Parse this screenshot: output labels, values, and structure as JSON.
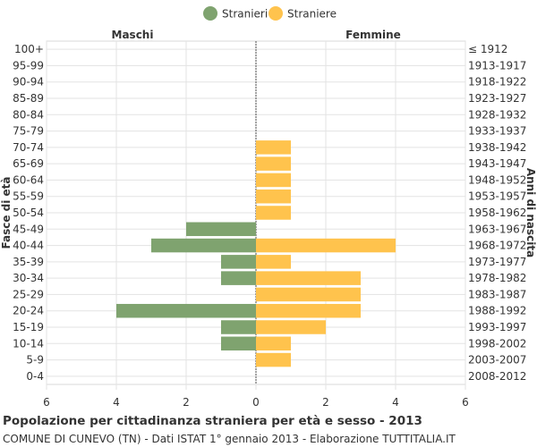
{
  "chart_data": {
    "type": "bar",
    "orientation": "horizontal",
    "title": "Popolazione per cittadinanza straniera per età e sesso - 2013",
    "subtitle": "COMUNE DI CUNEVO (TN) - Dati ISTAT 1° gennaio 2013 - Elaborazione TUTTITALIA.IT",
    "left_header": "Maschi",
    "right_header": "Femmine",
    "ylabel_left": "Fasce di età",
    "ylabel_right": "Anni di nascita",
    "xlim": [
      -6,
      6
    ],
    "xticks": [
      -6,
      -4,
      -2,
      0,
      2,
      4,
      6
    ],
    "xtick_labels": [
      "6",
      "4",
      "2",
      "0",
      "2",
      "4",
      "6"
    ],
    "legend_position": "top-center",
    "categories": [
      "100+",
      "95-99",
      "90-94",
      "85-89",
      "80-84",
      "75-79",
      "70-74",
      "65-69",
      "60-64",
      "55-59",
      "50-54",
      "45-49",
      "40-44",
      "35-39",
      "30-34",
      "25-29",
      "20-24",
      "15-19",
      "10-14",
      "5-9",
      "0-4"
    ],
    "birth_years": [
      "≤ 1912",
      "1913-1917",
      "1918-1922",
      "1923-1927",
      "1928-1932",
      "1933-1937",
      "1938-1942",
      "1943-1947",
      "1948-1952",
      "1953-1957",
      "1958-1962",
      "1963-1967",
      "1968-1972",
      "1973-1977",
      "1978-1982",
      "1983-1987",
      "1988-1992",
      "1993-1997",
      "1998-2002",
      "2003-2007",
      "2008-2012"
    ],
    "series": [
      {
        "name": "Stranieri",
        "color": "#7fa36f",
        "side": "left",
        "values": [
          0,
          0,
          0,
          0,
          0,
          0,
          0,
          0,
          0,
          0,
          0,
          2,
          3,
          1,
          1,
          0,
          4,
          1,
          1,
          0,
          0
        ]
      },
      {
        "name": "Straniere",
        "color": "#ffc34d",
        "side": "right",
        "values": [
          0,
          0,
          0,
          0,
          0,
          0,
          1,
          1,
          1,
          1,
          1,
          0,
          4,
          1,
          3,
          3,
          3,
          2,
          1,
          1,
          0
        ]
      }
    ]
  }
}
